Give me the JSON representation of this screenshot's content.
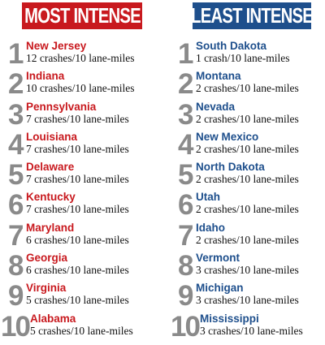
{
  "colors": {
    "most_accent": "#c8191e",
    "least_accent": "#1e4f8c",
    "rank_number": "#8a8a8a"
  },
  "most": {
    "title": "MOST INTENSE",
    "items": [
      {
        "rank": "1",
        "state": "New Jersey",
        "stat": "12 crashes/10 lane-miles"
      },
      {
        "rank": "2",
        "state": "Indiana",
        "stat": "10 crashes/10 lane-miles"
      },
      {
        "rank": "3",
        "state": "Pennsylvania",
        "stat": "7 crashes/10 lane-miles"
      },
      {
        "rank": "4",
        "state": "Louisiana",
        "stat": "7 crashes/10 lane-miles"
      },
      {
        "rank": "5",
        "state": "Delaware",
        "stat": "7 crashes/10 lane-miles"
      },
      {
        "rank": "6",
        "state": "Kentucky",
        "stat": "7 crashes/10 lane-miles"
      },
      {
        "rank": "7",
        "state": "Maryland",
        "stat": "6 crashes/10 lane-miles"
      },
      {
        "rank": "8",
        "state": "Georgia",
        "stat": "6 crashes/10 lane-miles"
      },
      {
        "rank": "9",
        "state": "Virginia",
        "stat": "5 crashes/10 lane-miles"
      },
      {
        "rank": "10",
        "state": "Alabama",
        "stat": "5 crashes/10 lane-miles"
      }
    ]
  },
  "least": {
    "title": "LEAST INTENSE",
    "items": [
      {
        "rank": "1",
        "state": "South Dakota",
        "stat": "1 crash/10 lane-miles"
      },
      {
        "rank": "2",
        "state": "Montana",
        "stat": "2 crashes/10 lane-miles"
      },
      {
        "rank": "3",
        "state": "Nevada",
        "stat": "2 crashes/10 lane-miles"
      },
      {
        "rank": "4",
        "state": "New Mexico",
        "stat": "2 crashes/10 lane-miles"
      },
      {
        "rank": "5",
        "state": "North Dakota",
        "stat": "2 crashes/10 lane-miles"
      },
      {
        "rank": "6",
        "state": "Utah",
        "stat": "2 crashes/10 lane-miles"
      },
      {
        "rank": "7",
        "state": "Idaho",
        "stat": "2 crashes/10 lane-miles"
      },
      {
        "rank": "8",
        "state": "Vermont",
        "stat": "3 crashes/10 lane-miles"
      },
      {
        "rank": "9",
        "state": "Michigan",
        "stat": "3 crashes/10 lane-miles"
      },
      {
        "rank": "10",
        "state": "Mississippi",
        "stat": "3 crashes/10 lane-miles"
      }
    ]
  }
}
